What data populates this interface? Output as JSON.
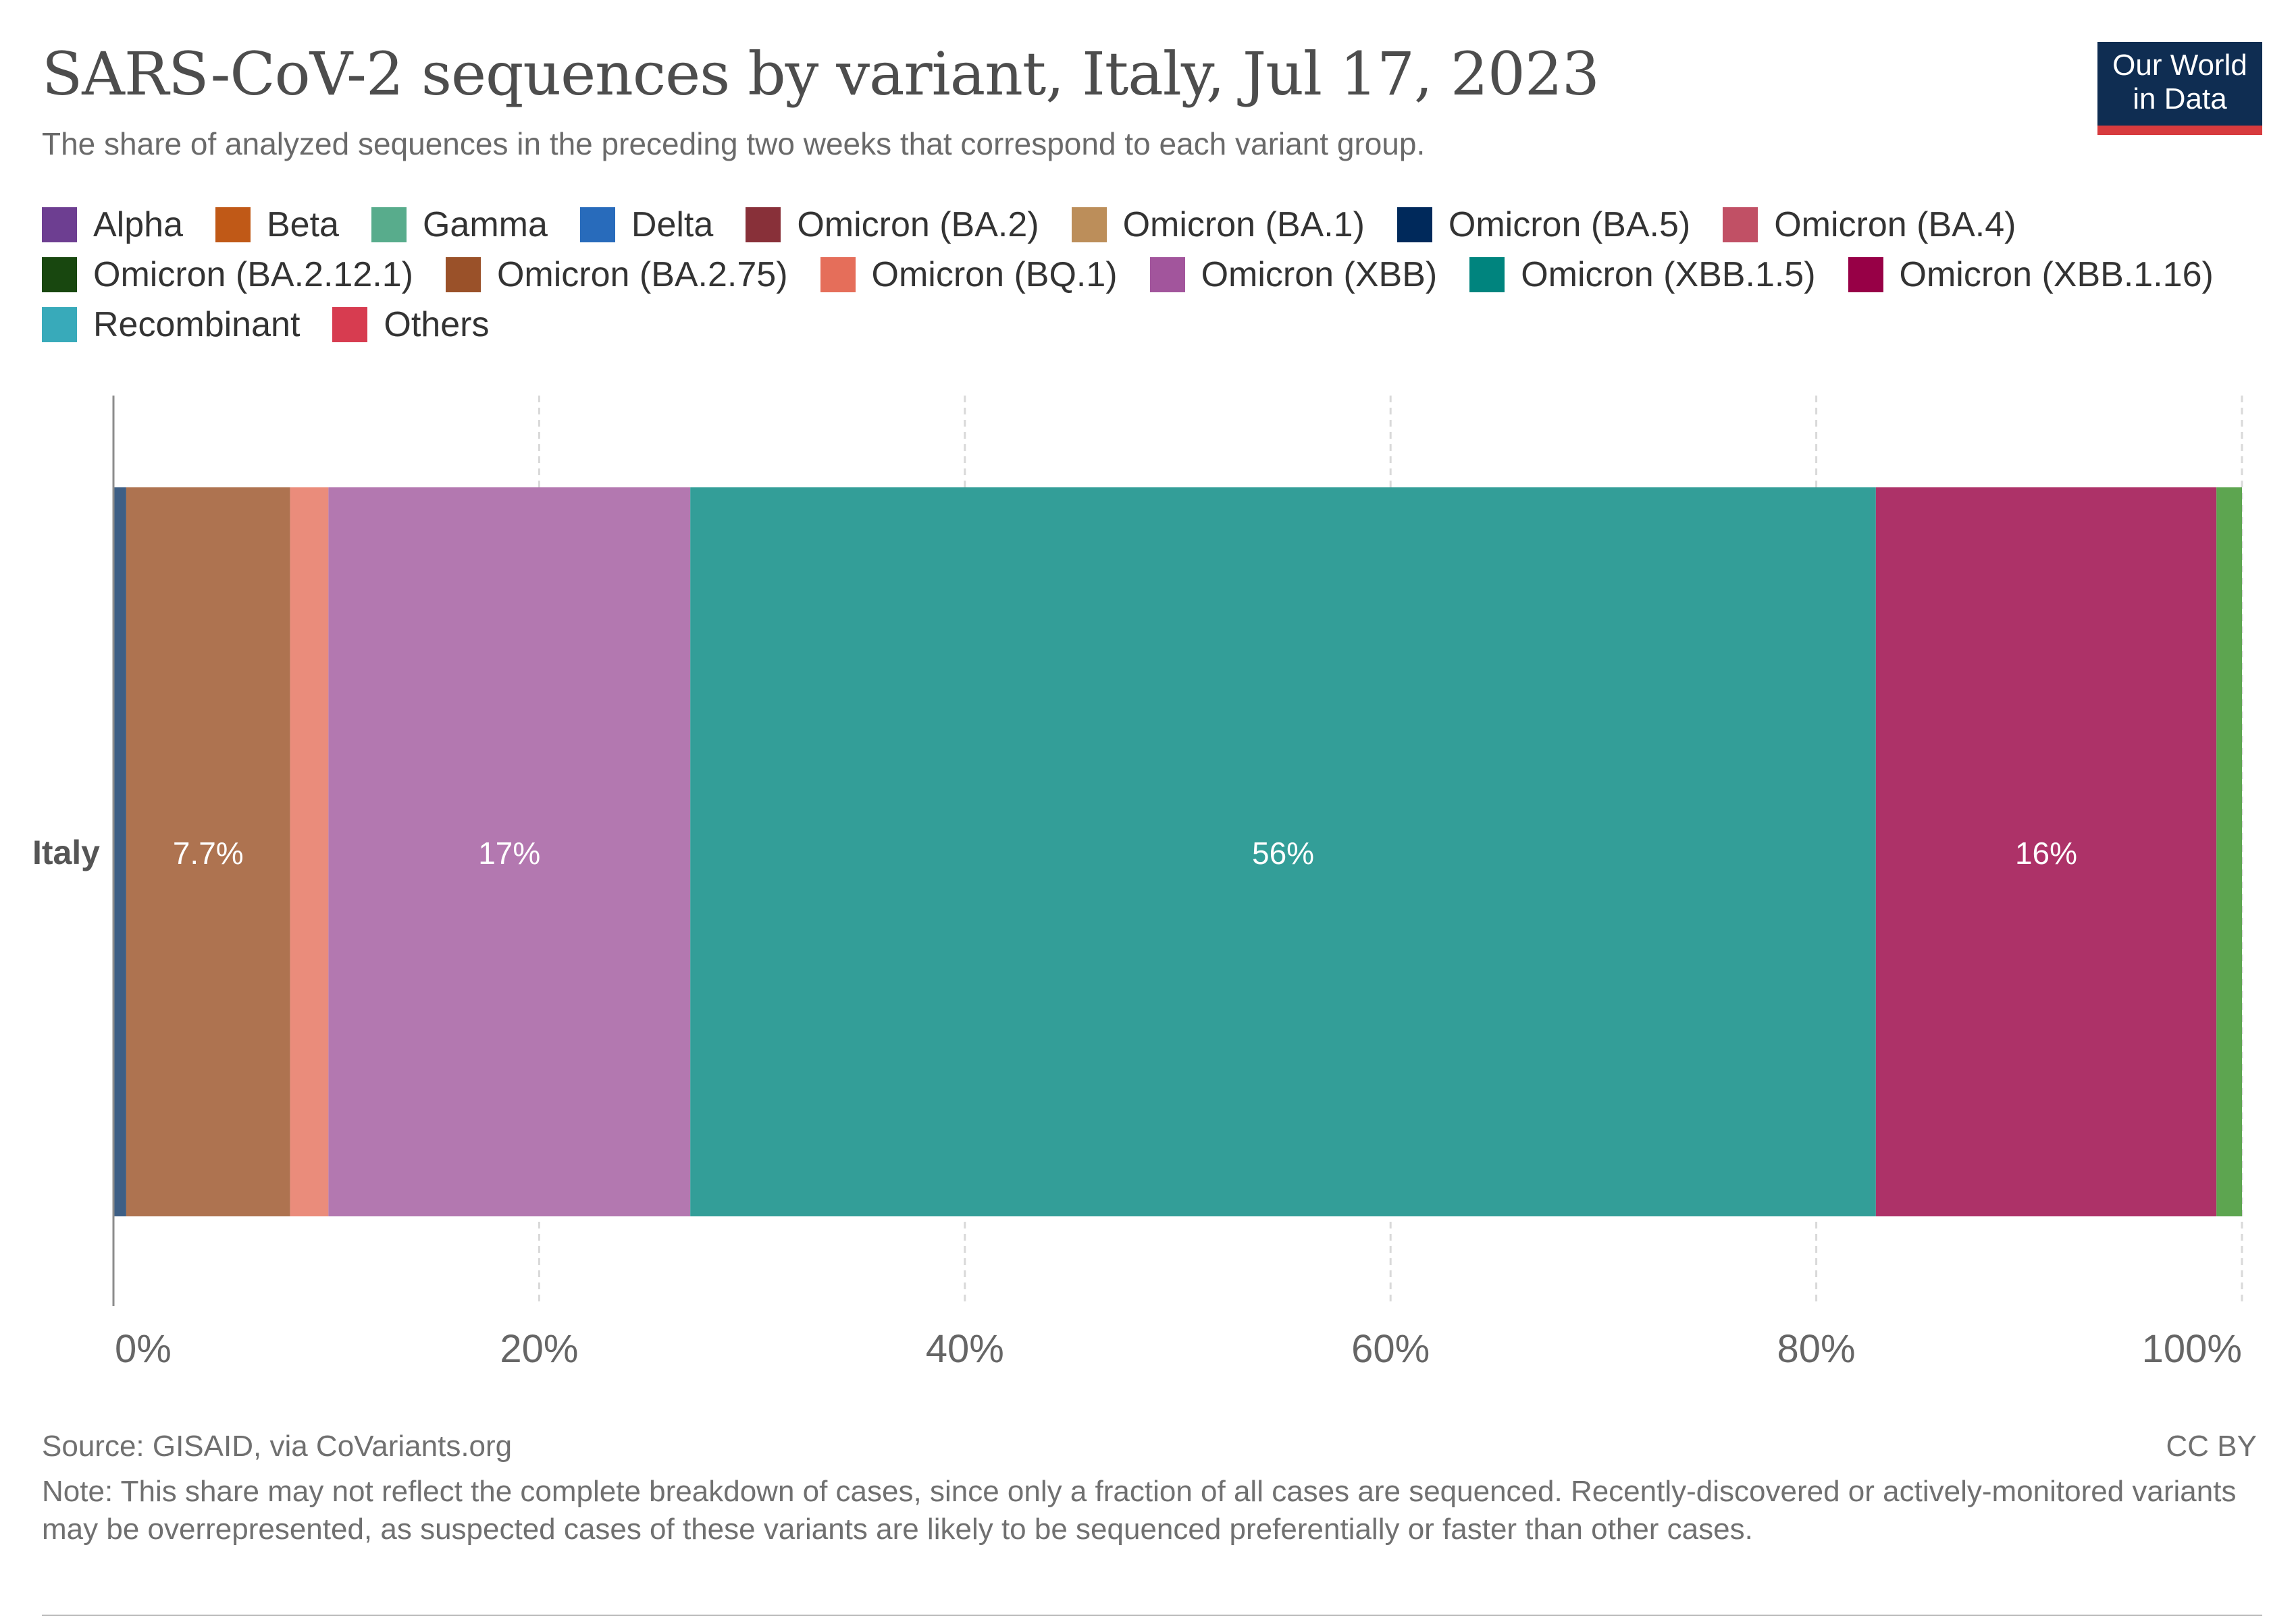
{
  "header": {
    "title": "SARS-CoV-2 sequences by variant, Italy, Jul 17, 2023",
    "subtitle": "The share of analyzed sequences in the preceding two weeks that correspond to each variant group.",
    "logo_line1": "Our World",
    "logo_line2": "in Data"
  },
  "legend": [
    {
      "label": "Alpha",
      "color": "#6d3e91"
    },
    {
      "label": "Beta",
      "color": "#c05917"
    },
    {
      "label": "Gamma",
      "color": "#58ac8c"
    },
    {
      "label": "Delta",
      "color": "#286bbb"
    },
    {
      "label": "Omicron (BA.2)",
      "color": "#883039"
    },
    {
      "label": "Omicron (BA.1)",
      "color": "#bc8e5a"
    },
    {
      "label": "Omicron (BA.5)",
      "color": "#00295b"
    },
    {
      "label": "Omicron (BA.4)",
      "color": "#c15065"
    },
    {
      "label": "Omicron (BA.2.12.1)",
      "color": "#18470f"
    },
    {
      "label": "Omicron (BA.2.75)",
      "color": "#9a5129"
    },
    {
      "label": "Omicron (BQ.1)",
      "color": "#e56e5a"
    },
    {
      "label": "Omicron (XBB)",
      "color": "#a2559c"
    },
    {
      "label": "Omicron (XBB.1.5)",
      "color": "#00847e"
    },
    {
      "label": "Omicron (XBB.1.16)",
      "color": "#970046"
    },
    {
      "label": "Recombinant",
      "color": "#38aaba"
    },
    {
      "label": "Others",
      "color": "#d73c50"
    }
  ],
  "chart_data": {
    "type": "bar",
    "orientation": "horizontal",
    "stacked": true,
    "categories": [
      "Italy"
    ],
    "xlim": [
      0,
      100
    ],
    "x_ticks": [
      "0%",
      "20%",
      "40%",
      "60%",
      "80%",
      "100%"
    ],
    "grid": "vertical dashed",
    "series": [
      {
        "name": "Omicron (BA.5)",
        "values": [
          0.6
        ],
        "color": "#3e5f85"
      },
      {
        "name": "Omicron (BA.2.75)",
        "values": [
          7.7
        ],
        "color": "#ae7350",
        "label": "7.7%"
      },
      {
        "name": "Omicron (BQ.1)",
        "values": [
          1.8
        ],
        "color": "#ea8c7b"
      },
      {
        "name": "Omicron (XBB)",
        "values": [
          17
        ],
        "color": "#b378b0",
        "label": "17%"
      },
      {
        "name": "Omicron (XBB.1.5)",
        "values": [
          55.7
        ],
        "color": "#339e98",
        "label": "56%"
      },
      {
        "name": "Omicron (XBB.1.16)",
        "values": [
          16
        ],
        "color": "#ad3268",
        "label": "16%"
      },
      {
        "name": "Recombinant",
        "values": [
          1.2
        ],
        "color": "#5da550"
      }
    ]
  },
  "footer": {
    "source": "Source: GISAID, via CoVariants.org",
    "license": "CC BY",
    "note": "Note: This share may not reflect the complete breakdown of cases, since only a fraction of all cases are sequenced. Recently-discovered or actively-monitored variants may be overrepresented, as suspected cases of these variants are likely to be sequenced preferentially or faster than other cases."
  }
}
